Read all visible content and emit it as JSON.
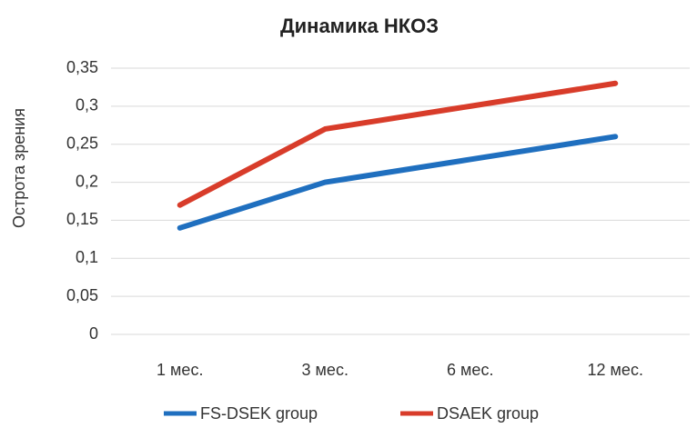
{
  "chart_data": {
    "type": "line",
    "title": "Динамика НКОЗ",
    "y_label": "Острота зрения",
    "categories": [
      "1 мес.",
      "3 мес.",
      "6 мес.",
      "12 мес."
    ],
    "series": [
      {
        "name": "FS-DSEK group",
        "color": "#1f6fbf",
        "values": [
          0.14,
          0.2,
          0.23,
          0.26
        ]
      },
      {
        "name": "DSAEK group",
        "color": "#d83c2a",
        "values": [
          0.17,
          0.27,
          0.3,
          0.33
        ]
      }
    ],
    "ylim": [
      0,
      0.35
    ],
    "yticks": [
      0,
      {
        "value": 0.05,
        "label": "0,05"
      },
      {
        "value": 0.1,
        "label": "0,1"
      },
      {
        "value": 0.15,
        "label": "0,15"
      },
      {
        "value": 0.2,
        "label": "0,2"
      },
      {
        "value": 0.25,
        "label": "0,25"
      },
      {
        "value": 0.3,
        "label": "0,3"
      },
      {
        "value": 0.35,
        "label": "0,35"
      }
    ],
    "grid": true,
    "legend": "bottom"
  }
}
